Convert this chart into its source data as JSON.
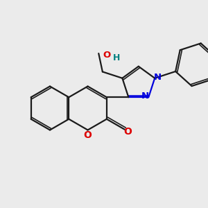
{
  "bg_color": "#ebebeb",
  "bond_color": "#1a1a1a",
  "N_color": "#0000dd",
  "O_color": "#dd0000",
  "lw": 1.6,
  "lw_inner": 1.2,
  "inner_off": 0.09,
  "figsize": [
    3.0,
    3.0
  ],
  "dpi": 100,
  "xlim": [
    0,
    10
  ],
  "ylim": [
    0,
    10
  ]
}
